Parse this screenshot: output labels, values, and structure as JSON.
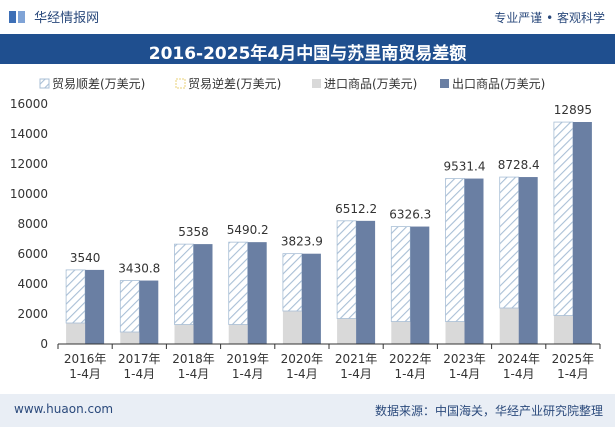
{
  "header": {
    "brand": "华经情报网",
    "tagline": "专业严谨 • 客观科学"
  },
  "title": "2016-2025年4月中国与苏里南贸易差额",
  "footer": {
    "website": "www.huaon.com",
    "source": "数据来源：中国海关，华经产业研究院整理"
  },
  "colors": {
    "title_bg": "#1f4f8f",
    "export": "#6a7fa3",
    "import": "#d9d9d9",
    "surplus_hatch": "#a9bfd6",
    "footer_bg": "#e9eef5"
  },
  "chart_data": {
    "type": "bar",
    "categories": [
      "2016年\n1-4月",
      "2017年\n1-4月",
      "2018年\n1-4月",
      "2019年\n1-4月",
      "2020年\n1-4月",
      "2021年\n1-4月",
      "2022年\n1-4月",
      "2023年\n1-4月",
      "2024年\n1-4月",
      "2025年\n1-4月"
    ],
    "series": [
      {
        "name": "贸易顺差(万美元)",
        "values": [
          3540,
          3430.8,
          5358,
          5490.2,
          3823.9,
          6512.2,
          6326.3,
          9531.4,
          8728.4,
          12895
        ]
      },
      {
        "name": "贸易逆差(万美元)",
        "values": [
          0,
          0,
          0,
          0,
          0,
          0,
          0,
          0,
          0,
          0
        ]
      },
      {
        "name": "进口商品(万美元)",
        "values": [
          1400,
          800,
          1300,
          1300,
          2200,
          1700,
          1500,
          1500,
          2400,
          1900
        ]
      },
      {
        "name": "出口商品(万美元)",
        "values": [
          4940,
          4230,
          6660,
          6790,
          6020,
          8210,
          7830,
          11030,
          11130,
          14800
        ]
      }
    ],
    "data_labels": [
      "3540",
      "3430.8",
      "5358",
      "5490.2",
      "3823.9",
      "6512.2",
      "6326.3",
      "9531.4",
      "8728.4",
      "12895"
    ],
    "ylim": [
      0,
      16000
    ],
    "yticks": [
      0,
      2000,
      4000,
      6000,
      8000,
      10000,
      12000,
      14000,
      16000
    ],
    "legend_position": "top",
    "grid": false
  }
}
